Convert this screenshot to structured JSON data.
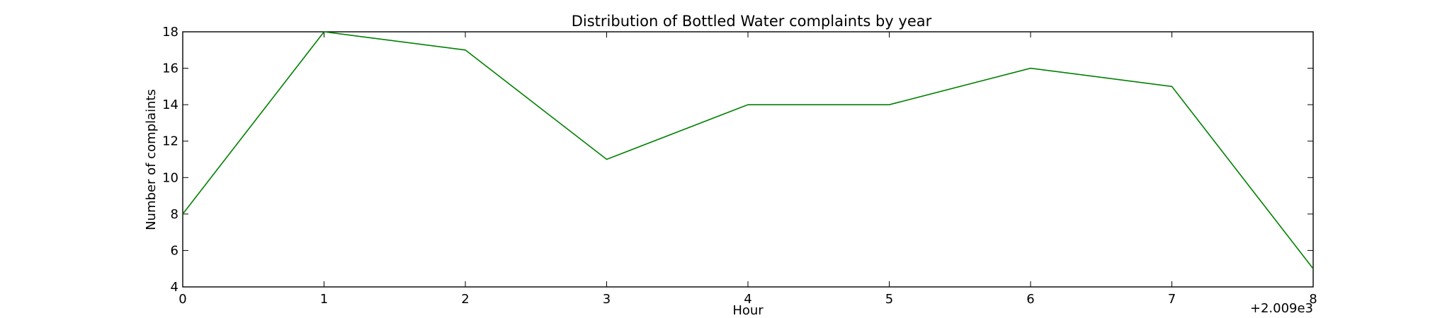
{
  "chart_data": {
    "type": "line",
    "title": "Distribution of  Bottled Water complaints by year",
    "xlabel": "Hour",
    "ylabel": "Number of complaints",
    "x_offset_label": "+2.009e3",
    "xlim": [
      0,
      8
    ],
    "ylim": [
      4,
      18
    ],
    "x_ticks": [
      "0",
      "1",
      "2",
      "3",
      "4",
      "5",
      "6",
      "7",
      "8"
    ],
    "y_ticks": [
      "4",
      "6",
      "8",
      "10",
      "12",
      "14",
      "16",
      "18"
    ],
    "grid": false,
    "series": [
      {
        "color": "#008000",
        "x": [
          0,
          1,
          2,
          3,
          4,
          5,
          6,
          7,
          8
        ],
        "y": [
          8,
          18,
          17,
          11,
          14,
          14,
          16,
          15,
          5
        ]
      }
    ]
  }
}
